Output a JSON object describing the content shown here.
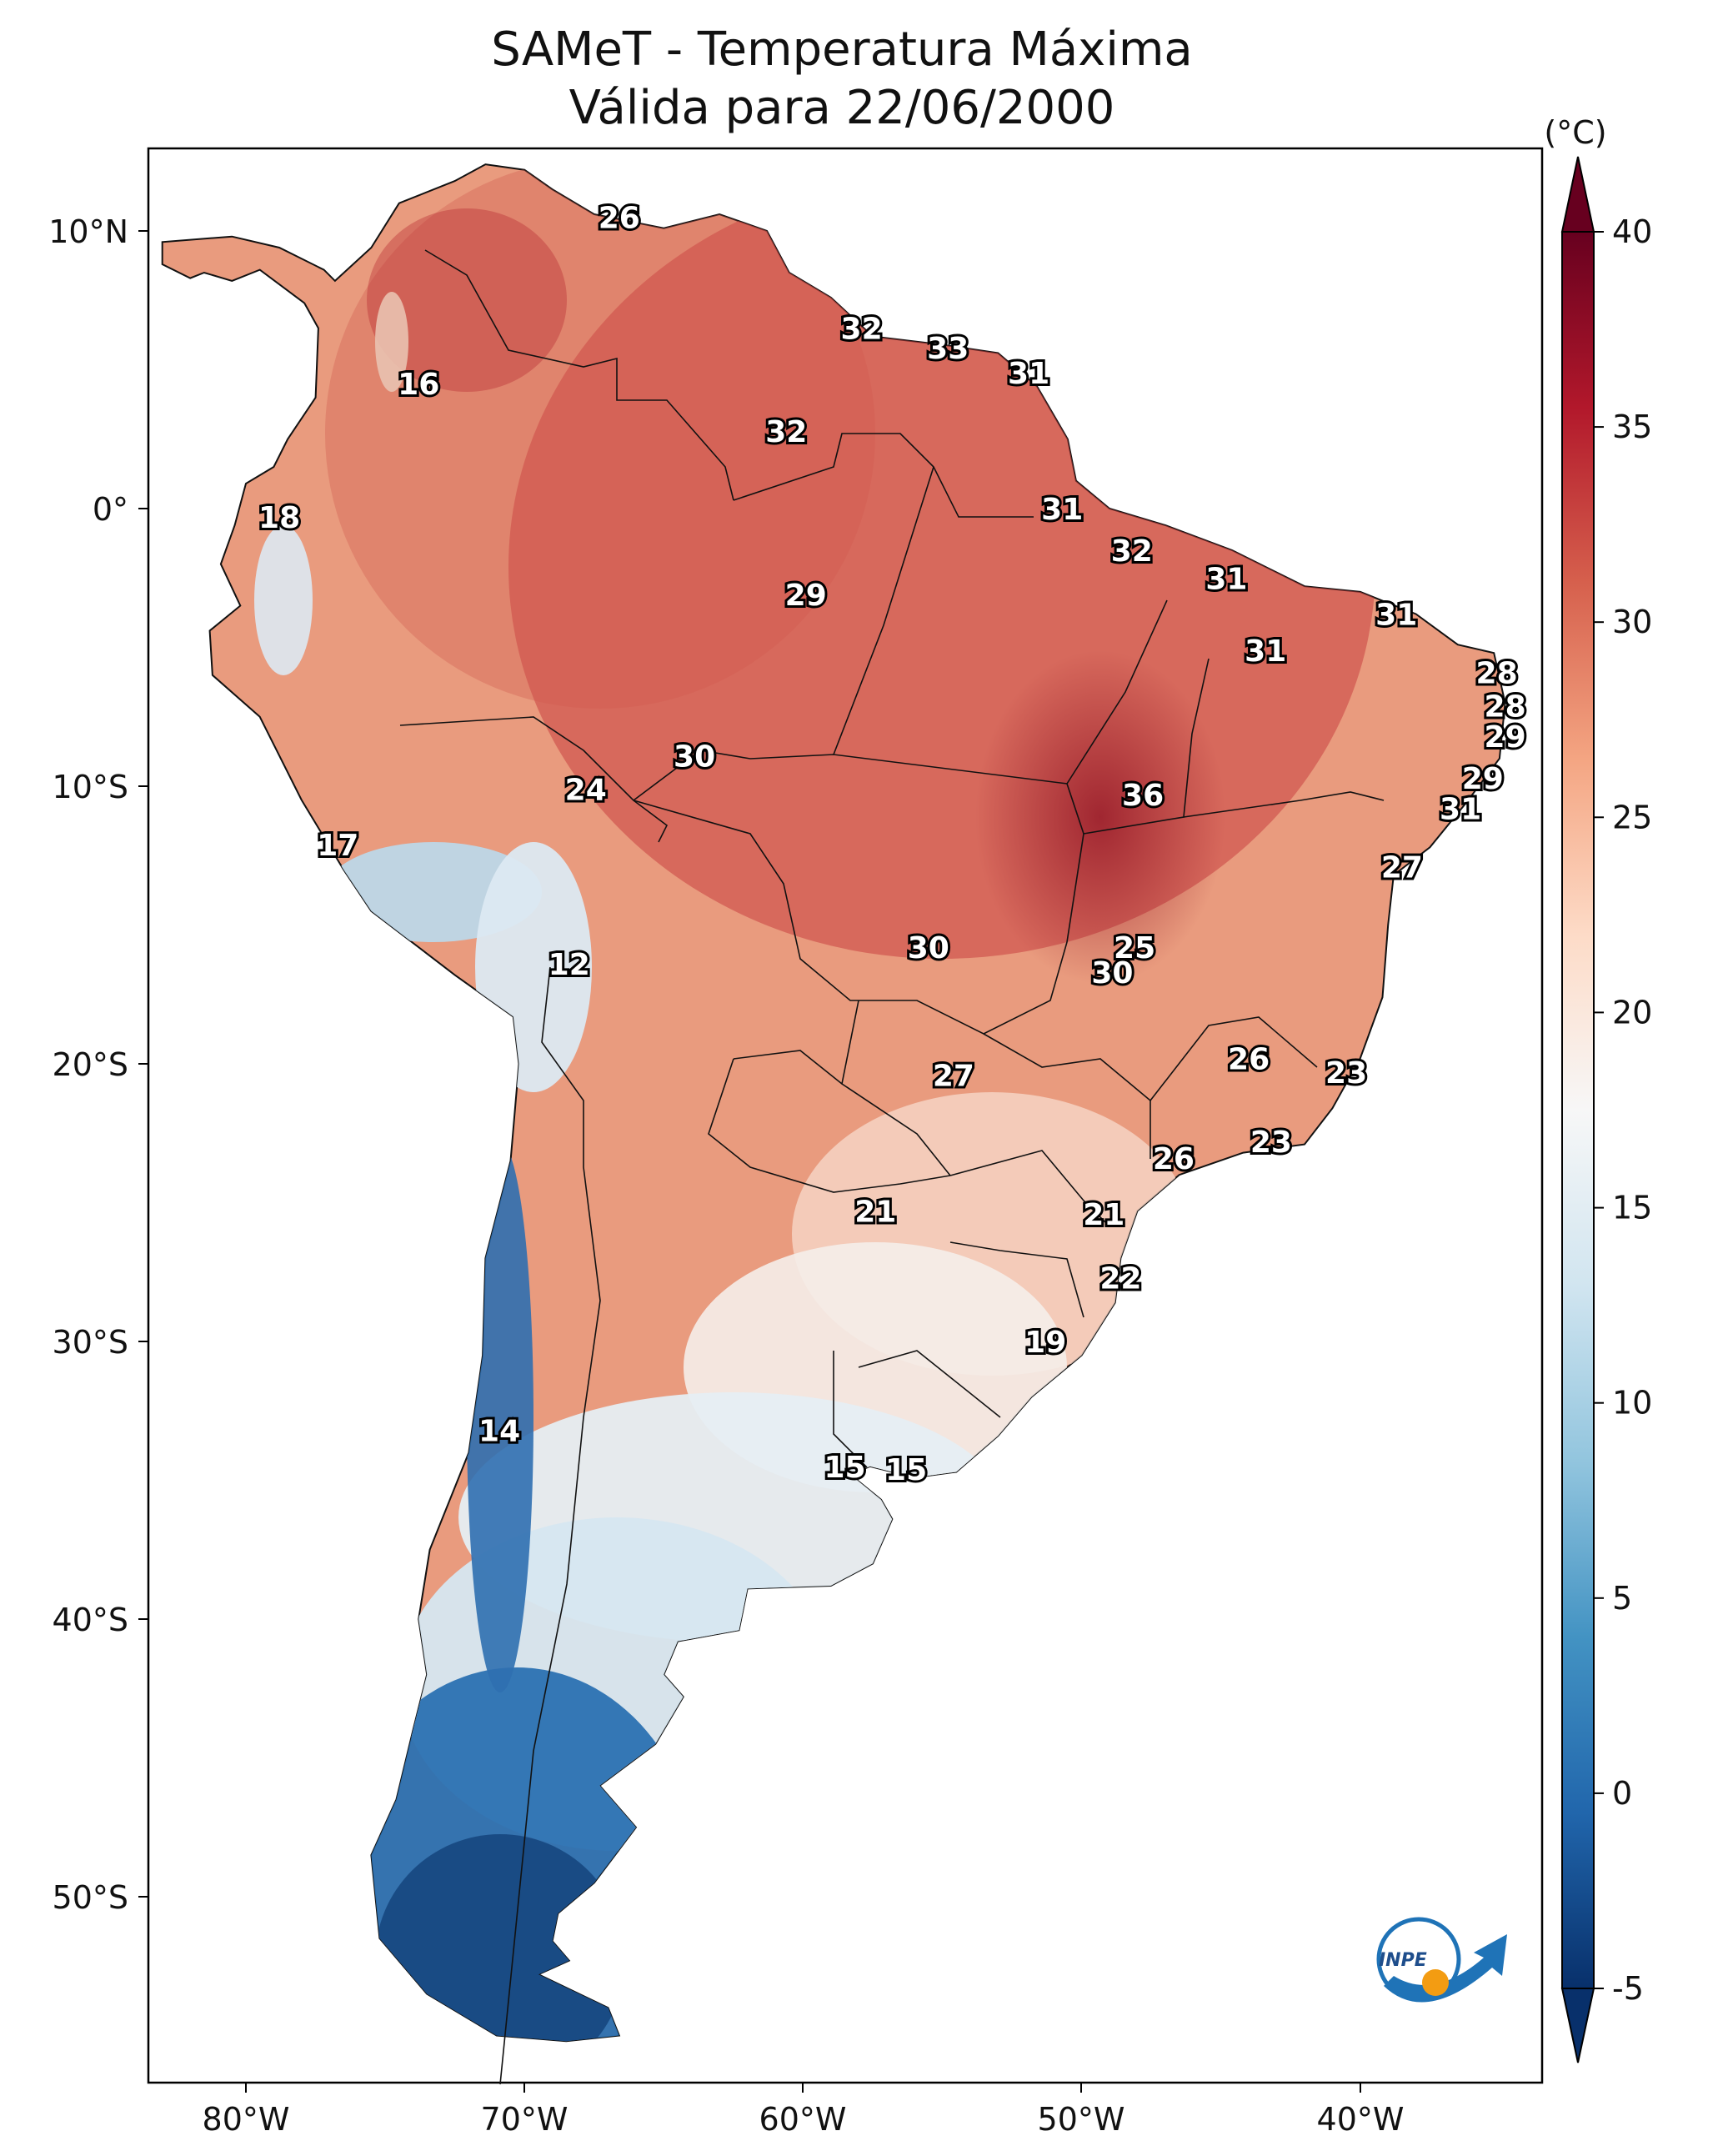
{
  "title_line1": "SAMeT - Temperatura Máxima",
  "title_line2": "Válida para 22/06/2000",
  "colorbar": {
    "unit": "(°C)",
    "ticks": [
      "40",
      "35",
      "30",
      "25",
      "20",
      "15",
      "10",
      "5",
      "0",
      "-5"
    ],
    "min": -5,
    "max": 40,
    "colors": [
      "#08306b",
      "#2166ac",
      "#4393c3",
      "#92c5de",
      "#d1e5f0",
      "#f7f7f7",
      "#fddbc7",
      "#f4a582",
      "#d6604d",
      "#b2182b",
      "#67001f"
    ]
  },
  "axes": {
    "lat_labels": [
      "10°N",
      "0°",
      "10°S",
      "20°S",
      "30°S",
      "40°S",
      "50°S"
    ],
    "lon_labels": [
      "80°W",
      "70°W",
      "60°W",
      "50°W",
      "40°W"
    ]
  },
  "logo": {
    "text": "INPE",
    "icon": "inpe-logo-icon"
  },
  "map_labels": [
    {
      "value": "26",
      "lon": -66.6,
      "lat": 10.5
    },
    {
      "value": "16",
      "lon": -73.8,
      "lat": 4.5
    },
    {
      "value": "32",
      "lon": -57.9,
      "lat": 6.5
    },
    {
      "value": "33",
      "lon": -54.8,
      "lat": 5.8
    },
    {
      "value": "31",
      "lon": -51.9,
      "lat": 4.9
    },
    {
      "value": "32",
      "lon": -60.6,
      "lat": 2.8
    },
    {
      "value": "18",
      "lon": -78.8,
      "lat": -0.3
    },
    {
      "value": "31",
      "lon": -50.7,
      "lat": 0.0
    },
    {
      "value": "32",
      "lon": -48.2,
      "lat": -1.5
    },
    {
      "value": "29",
      "lon": -59.9,
      "lat": -3.1
    },
    {
      "value": "31",
      "lon": -44.8,
      "lat": -2.5
    },
    {
      "value": "31",
      "lon": -38.7,
      "lat": -3.8
    },
    {
      "value": "31",
      "lon": -43.4,
      "lat": -5.1
    },
    {
      "value": "28",
      "lon": -35.1,
      "lat": -5.9
    },
    {
      "value": "28",
      "lon": -34.8,
      "lat": -7.1
    },
    {
      "value": "29",
      "lon": -34.8,
      "lat": -8.2
    },
    {
      "value": "30",
      "lon": -63.9,
      "lat": -8.9
    },
    {
      "value": "24",
      "lon": -67.8,
      "lat": -10.1
    },
    {
      "value": "36",
      "lon": -47.8,
      "lat": -10.3
    },
    {
      "value": "29",
      "lon": -35.6,
      "lat": -9.7
    },
    {
      "value": "31",
      "lon": -36.4,
      "lat": -10.8
    },
    {
      "value": "17",
      "lon": -76.7,
      "lat": -12.1
    },
    {
      "value": "27",
      "lon": -38.5,
      "lat": -12.9
    },
    {
      "value": "30",
      "lon": -55.5,
      "lat": -15.8
    },
    {
      "value": "25",
      "lon": -48.1,
      "lat": -15.8
    },
    {
      "value": "30",
      "lon": -48.9,
      "lat": -16.7
    },
    {
      "value": "12",
      "lon": -68.4,
      "lat": -16.4
    },
    {
      "value": "27",
      "lon": -54.6,
      "lat": -20.4
    },
    {
      "value": "26",
      "lon": -44.0,
      "lat": -19.8
    },
    {
      "value": "23",
      "lon": -40.5,
      "lat": -20.3
    },
    {
      "value": "26",
      "lon": -46.7,
      "lat": -23.4
    },
    {
      "value": "23",
      "lon": -43.2,
      "lat": -22.8
    },
    {
      "value": "21",
      "lon": -57.4,
      "lat": -25.3
    },
    {
      "value": "21",
      "lon": -49.2,
      "lat": -25.4
    },
    {
      "value": "22",
      "lon": -48.6,
      "lat": -27.7
    },
    {
      "value": "19",
      "lon": -51.3,
      "lat": -30.0
    },
    {
      "value": "14",
      "lon": -70.9,
      "lat": -33.2
    },
    {
      "value": "15",
      "lon": -58.5,
      "lat": -34.5
    },
    {
      "value": "15",
      "lon": -56.3,
      "lat": -34.6
    }
  ]
}
